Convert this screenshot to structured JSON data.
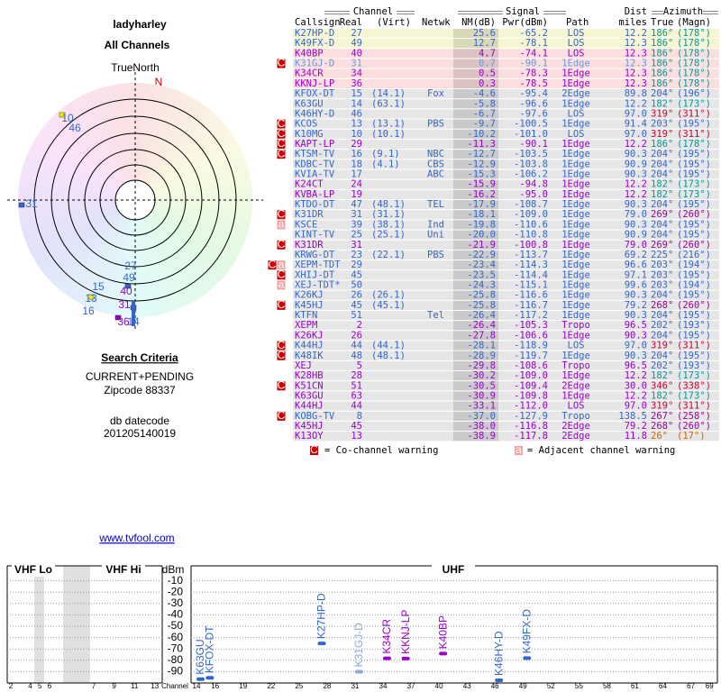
{
  "header": {
    "title": "ladyharley",
    "subtitle": "All Channels"
  },
  "polar": {
    "north_label": "TrueNorth",
    "n": "N",
    "labels": [
      {
        "text": "10",
        "color": "#3366cc"
      },
      {
        "text": "46",
        "color": "#3366cc"
      },
      {
        "text": "31",
        "color": "#3366cc"
      },
      {
        "text": "27",
        "color": "#3366cc"
      },
      {
        "text": "49",
        "color": "#3366cc"
      },
      {
        "text": "15",
        "color": "#3366cc"
      },
      {
        "text": "13",
        "color": "#3366cc"
      },
      {
        "text": "40",
        "color": "#9900cc"
      },
      {
        "text": "16",
        "color": "#3366cc"
      },
      {
        "text": "31",
        "color": "#9900cc"
      },
      {
        "text": "36",
        "color": "#9900cc"
      },
      {
        "text": "14",
        "color": "#3366cc"
      }
    ]
  },
  "criteria": {
    "heading": "Search Criteria",
    "mode": "CURRENT+PENDING",
    "zipcode": "Zipcode 88337",
    "db_label": "db datecode",
    "db_code": "201205140019"
  },
  "link": "www.tvfool.com",
  "table": {
    "groups": {
      "channel": "Channel",
      "signal": "Signal",
      "dist": "Dist",
      "azimuth": "Azimuth"
    },
    "columns": [
      "Callsign",
      "Real",
      "(Virt)",
      "Netwk",
      "NM(dB)",
      "Pwr(dBm)",
      "Path",
      "miles",
      "True",
      "(Magn)"
    ],
    "rows": [
      {
        "cells": [
          "K27HP-D",
          "27",
          null,
          null,
          "25.6",
          "-65.2",
          "LOS",
          "12.2",
          "186°",
          "(178°)"
        ],
        "color": "#3366cc",
        "az_color": "#009999",
        "bg": "#f6f6d2"
      },
      {
        "cells": [
          "K49FX-D",
          "49",
          null,
          null,
          "12.7",
          "-78.1",
          "LOS",
          "12.3",
          "186°",
          "(178°)"
        ],
        "color": "#3366cc",
        "az_color": "#009999",
        "bg": "#f6f6d2"
      },
      {
        "cells": [
          "K40BP",
          "40",
          null,
          null,
          "4.7",
          "-74.1",
          "LOS",
          "12.3",
          "186°",
          "(178°)"
        ],
        "color": "#9900cc",
        "az_color": "#009999",
        "bg": "#fbdede"
      },
      {
        "cells": [
          "K31GJ-D",
          "31",
          null,
          null,
          "0.7",
          "-90.1",
          "1Edge",
          "12.3",
          "186°",
          "(178°)"
        ],
        "color": "#6699dd",
        "az_color": "#009999",
        "bg": "#fbdede",
        "warn": [
          "C"
        ]
      },
      {
        "cells": [
          "K34CR",
          "34",
          null,
          null,
          "0.5",
          "-78.3",
          "1Edge",
          "12.3",
          "186°",
          "(178°)"
        ],
        "color": "#9900cc",
        "az_color": "#009999",
        "bg": "#fbdede"
      },
      {
        "cells": [
          "KKNJ-LP",
          "36",
          null,
          null,
          "0.3",
          "-78.5",
          "1Edge",
          "12.3",
          "186°",
          "(178°)"
        ],
        "color": "#9900cc",
        "az_color": "#009999",
        "bg": "#fbdede"
      },
      {
        "cells": [
          "KFOX-DT",
          "15",
          "(14.1)",
          "Fox",
          "-4.6",
          "-95.4",
          "2Edge",
          "89.8",
          "204°",
          "(196°)"
        ],
        "color": "#3366cc",
        "az_color": "#3366cc",
        "bg": "#e6e6e6"
      },
      {
        "cells": [
          "K63GU",
          "14",
          "(63.1)",
          null,
          "-5.8",
          "-96.6",
          "1Edge",
          "12.2",
          "182°",
          "(173°)"
        ],
        "color": "#3366cc",
        "az_color": "#009999",
        "bg": "#e6e6e6"
      },
      {
        "cells": [
          "K46HY-D",
          "46",
          null,
          null,
          "-6.7",
          "-97.6",
          "LOS",
          "97.0",
          "319°",
          "(311°)"
        ],
        "color": "#3366cc",
        "az_color": "#cc0033",
        "bg": "#e6e6e6"
      },
      {
        "cells": [
          "KCOS",
          "13",
          "(13.1)",
          "PBS",
          "-9.7",
          "-100.5",
          "1Edge",
          "91.4",
          "203°",
          "(195°)"
        ],
        "color": "#3366cc",
        "az_color": "#3366cc",
        "bg": "#e6e6e6",
        "warn": [
          "C"
        ]
      },
      {
        "cells": [
          "K10MG",
          "10",
          "(10.1)",
          null,
          "-10.2",
          "-101.0",
          "LOS",
          "97.0",
          "319°",
          "(311°)"
        ],
        "color": "#3366cc",
        "az_color": "#cc0033",
        "bg": "#e6e6e6",
        "warn": [
          "C"
        ]
      },
      {
        "cells": [
          "KAPT-LP",
          "29",
          null,
          null,
          "-11.3",
          "-90.1",
          "1Edge",
          "12.2",
          "186°",
          "(178°)"
        ],
        "color": "#9900cc",
        "az_color": "#009999",
        "bg": "#e6e6e6",
        "warn": [
          "C"
        ]
      },
      {
        "cells": [
          "KTSM-TV",
          "16",
          "(9.1)",
          "NBC",
          "-12.7",
          "-103.5",
          "1Edge",
          "90.3",
          "204°",
          "(195°)"
        ],
        "color": "#3366cc",
        "az_color": "#3366cc",
        "bg": "#e6e6e6",
        "warn": [
          "C"
        ]
      },
      {
        "cells": [
          "KDBC-TV",
          "18",
          "(4.1)",
          "CBS",
          "-12.9",
          "-103.8",
          "1Edge",
          "90.9",
          "204°",
          "(195°)"
        ],
        "color": "#3366cc",
        "az_color": "#3366cc",
        "bg": "#e6e6e6"
      },
      {
        "cells": [
          "KVIA-TV",
          "17",
          null,
          "ABC",
          "-15.3",
          "-106.2",
          "1Edge",
          "90.3",
          "204°",
          "(195°)"
        ],
        "color": "#3366cc",
        "az_color": "#3366cc",
        "bg": "#e6e6e6"
      },
      {
        "cells": [
          "K24CT",
          "24",
          null,
          null,
          "-15.9",
          "-94.8",
          "1Edge",
          "12.2",
          "182°",
          "(173°)"
        ],
        "color": "#9900cc",
        "az_color": "#009999",
        "bg": "#e6e6e6"
      },
      {
        "cells": [
          "KVBA-LP",
          "19",
          null,
          null,
          "-16.2",
          "-95.0",
          "1Edge",
          "12.2",
          "182°",
          "(173°)"
        ],
        "color": "#9900cc",
        "az_color": "#009999",
        "bg": "#e6e6e6"
      },
      {
        "cells": [
          "KTDO-DT",
          "47",
          "(48.1)",
          "TEL",
          "-17.9",
          "-108.7",
          "1Edge",
          "90.3",
          "204°",
          "(195°)"
        ],
        "color": "#3366cc",
        "az_color": "#3366cc",
        "bg": "#e6e6e6"
      },
      {
        "cells": [
          "K31DR",
          "31",
          "(31.1)",
          null,
          "-18.1",
          "-109.0",
          "1Edge",
          "79.0",
          "269°",
          "(260°)"
        ],
        "color": "#3366cc",
        "az_color": "#990099",
        "bg": "#e6e6e6",
        "warn": [
          "C"
        ]
      },
      {
        "cells": [
          "KSCE",
          "39",
          "(38.1)",
          "Ind",
          "-19.8",
          "-110.6",
          "1Edge",
          "90.3",
          "204°",
          "(195°)"
        ],
        "color": "#3366cc",
        "az_color": "#3366cc",
        "bg": "#e6e6e6",
        "warn": [
          "a"
        ]
      },
      {
        "cells": [
          "KINT-TV",
          "25",
          "(25.1)",
          "Uni",
          "-20.0",
          "-110.8",
          "1Edge",
          "90.9",
          "204°",
          "(195°)"
        ],
        "color": "#3366cc",
        "az_color": "#3366cc",
        "bg": "#e6e6e6"
      },
      {
        "cells": [
          "K31DR",
          "31",
          null,
          null,
          "-21.9",
          "-100.8",
          "1Edge",
          "79.0",
          "269°",
          "(260°)"
        ],
        "color": "#9900cc",
        "az_color": "#990099",
        "bg": "#e6e6e6",
        "warn": [
          "C"
        ]
      },
      {
        "cells": [
          "KRWG-DT",
          "23",
          "(22.1)",
          "PBS",
          "-22.9",
          "-113.7",
          "1Edge",
          "69.2",
          "225°",
          "(216°)"
        ],
        "color": "#3366cc",
        "az_color": "#3366cc",
        "bg": "#e6e6e6"
      },
      {
        "cells": [
          "XEPM-TDT",
          "29",
          null,
          null,
          "-23.4",
          "-114.3",
          "1Edge",
          "96.6",
          "203°",
          "(194°)"
        ],
        "color": "#3366cc",
        "az_color": "#3366cc",
        "bg": "#e6e6e6",
        "warn": [
          "C",
          "a"
        ]
      },
      {
        "cells": [
          "XHIJ-DT",
          "45",
          null,
          null,
          "-23.5",
          "-114.4",
          "1Edge",
          "97.1",
          "203°",
          "(195°)"
        ],
        "color": "#3366cc",
        "az_color": "#3366cc",
        "bg": "#e6e6e6",
        "warn": [
          "C"
        ]
      },
      {
        "cells": [
          "XEJ-TDT*",
          "50",
          null,
          null,
          "-24.3",
          "-115.1",
          "1Edge",
          "99.6",
          "203°",
          "(194°)"
        ],
        "color": "#3366cc",
        "az_color": "#3366cc",
        "bg": "#e6e6e6",
        "warn": [
          "a"
        ]
      },
      {
        "cells": [
          "K26KJ",
          "26",
          "(26.1)",
          null,
          "-25.8",
          "-116.6",
          "1Edge",
          "90.3",
          "204°",
          "(195°)"
        ],
        "color": "#3366cc",
        "az_color": "#3366cc",
        "bg": "#e6e6e6"
      },
      {
        "cells": [
          "K45HJ",
          "45",
          "(45.1)",
          null,
          "-25.8",
          "-116.7",
          "1Edge",
          "79.2",
          "268°",
          "(260°)"
        ],
        "color": "#3366cc",
        "az_color": "#990099",
        "bg": "#e6e6e6",
        "warn": [
          "C"
        ]
      },
      {
        "cells": [
          "KTFN",
          "51",
          null,
          "Tel",
          "-26.4",
          "-117.2",
          "1Edge",
          "90.3",
          "204°",
          "(195°)"
        ],
        "color": "#3366cc",
        "az_color": "#3366cc",
        "bg": "#e6e6e6"
      },
      {
        "cells": [
          "XEPM",
          "2",
          null,
          null,
          "-26.4",
          "-105.3",
          "Tropo",
          "96.5",
          "202°",
          "(193°)"
        ],
        "color": "#9900cc",
        "az_color": "#3366cc",
        "bg": "#e6e6e6"
      },
      {
        "cells": [
          "K26KJ",
          "26",
          null,
          null,
          "-27.8",
          "-106.6",
          "1Edge",
          "90.3",
          "204°",
          "(195°)"
        ],
        "color": "#9900cc",
        "az_color": "#3366cc",
        "bg": "#e6e6e6"
      },
      {
        "cells": [
          "K44HJ",
          "44",
          "(44.1)",
          null,
          "-28.1",
          "-118.9",
          "LOS",
          "97.0",
          "319°",
          "(311°)"
        ],
        "color": "#3366cc",
        "az_color": "#cc0033",
        "bg": "#e6e6e6",
        "warn": [
          "C"
        ]
      },
      {
        "cells": [
          "K48IK",
          "48",
          "(48.1)",
          null,
          "-28.9",
          "-119.7",
          "1Edge",
          "90.3",
          "204°",
          "(195°)"
        ],
        "color": "#3366cc",
        "az_color": "#3366cc",
        "bg": "#e6e6e6",
        "warn": [
          "C"
        ]
      },
      {
        "cells": [
          "XEJ",
          "5",
          null,
          null,
          "-29.8",
          "-108.6",
          "Tropo",
          "96.5",
          "202°",
          "(193°)"
        ],
        "color": "#9900cc",
        "az_color": "#3366cc",
        "bg": "#e6e6e6"
      },
      {
        "cells": [
          "K28HB",
          "28",
          null,
          null,
          "-30.2",
          "-109.0",
          "1Edge",
          "12.2",
          "182°",
          "(173°)"
        ],
        "color": "#9900cc",
        "az_color": "#009999",
        "bg": "#e6e6e6"
      },
      {
        "cells": [
          "K51CN",
          "51",
          null,
          null,
          "-30.5",
          "-109.4",
          "2Edge",
          "30.0",
          "346°",
          "(338°)"
        ],
        "color": "#9900cc",
        "az_color": "#cc0033",
        "bg": "#e6e6e6",
        "warn": [
          "C"
        ]
      },
      {
        "cells": [
          "K63GU",
          "63",
          null,
          null,
          "-30.9",
          "-109.8",
          "1Edge",
          "12.2",
          "182°",
          "(173°)"
        ],
        "color": "#9900cc",
        "az_color": "#009999",
        "bg": "#e6e6e6"
      },
      {
        "cells": [
          "K44HJ",
          "44",
          null,
          null,
          "-33.1",
          "-112.0",
          "LOS",
          "97.0",
          "319°",
          "(311°)"
        ],
        "color": "#9900cc",
        "az_color": "#cc0033",
        "bg": "#e6e6e6"
      },
      {
        "cells": [
          "KOBG-TV",
          "8",
          null,
          null,
          "-37.0",
          "-127.9",
          "Tropo",
          "138.5",
          "267°",
          "(258°)"
        ],
        "color": "#3366cc",
        "az_color": "#990099",
        "bg": "#e6e6e6",
        "warn": [
          "C"
        ]
      },
      {
        "cells": [
          "K45HJ",
          "45",
          null,
          null,
          "-38.0",
          "-116.8",
          "2Edge",
          "79.2",
          "268°",
          "(260°)"
        ],
        "color": "#9900cc",
        "az_color": "#990099",
        "bg": "#e6e6e6"
      },
      {
        "cells": [
          "K13OY",
          "13",
          null,
          null,
          "-38.9",
          "-117.8",
          "2Edge",
          "11.8",
          "26°",
          "(17°)"
        ],
        "color": "#9900cc",
        "az_color": "#cc6600",
        "bg": "#e6e6e6"
      }
    ],
    "legend": {
      "co_icon": "C",
      "co_text": "= Co-channel warning",
      "adj_icon": "a",
      "adj_text": "= Adjacent channel warning"
    }
  },
  "spectrum": {
    "vhf_lo": "VHF Lo",
    "vhf_hi": "VHF Hi",
    "uhf": "UHF",
    "unit": "dBm",
    "x_label": "Channel",
    "ylim": [
      -100,
      0
    ],
    "yticks": [
      -10,
      -20,
      -30,
      -40,
      -50,
      -60,
      -70,
      -80,
      -90
    ],
    "vhf_channels": [
      2,
      4,
      5,
      6,
      7,
      9,
      11,
      13
    ],
    "uhf_channels": [
      14,
      16,
      19,
      22,
      25,
      28,
      31,
      34,
      37,
      40,
      43,
      46,
      49,
      52,
      55,
      58,
      61,
      64,
      67,
      69
    ],
    "markers": [
      {
        "name": "K63GU",
        "channel": 14,
        "value": -96.6,
        "color": "#3366cc"
      },
      {
        "name": "KFOX-DT",
        "channel": 15,
        "value": -95.4,
        "color": "#3366cc"
      },
      {
        "name": "K27HP-D",
        "channel": 27,
        "value": -65.2,
        "color": "#3366cc"
      },
      {
        "name": "K31GJ-D",
        "channel": 31,
        "value": -90.1,
        "color": "#88aadd"
      },
      {
        "name": "K34CR",
        "channel": 34,
        "value": -78.3,
        "color": "#9900cc"
      },
      {
        "name": "KKNJ-LP",
        "channel": 36,
        "value": -78.5,
        "color": "#9900cc"
      },
      {
        "name": "K40BP",
        "channel": 40,
        "value": -74.1,
        "color": "#9900cc"
      },
      {
        "name": "K46HY-D",
        "channel": 46,
        "value": -97.6,
        "color": "#3366cc"
      },
      {
        "name": "K49FX-D",
        "channel": 49,
        "value": -78.1,
        "color": "#3366cc"
      }
    ]
  }
}
